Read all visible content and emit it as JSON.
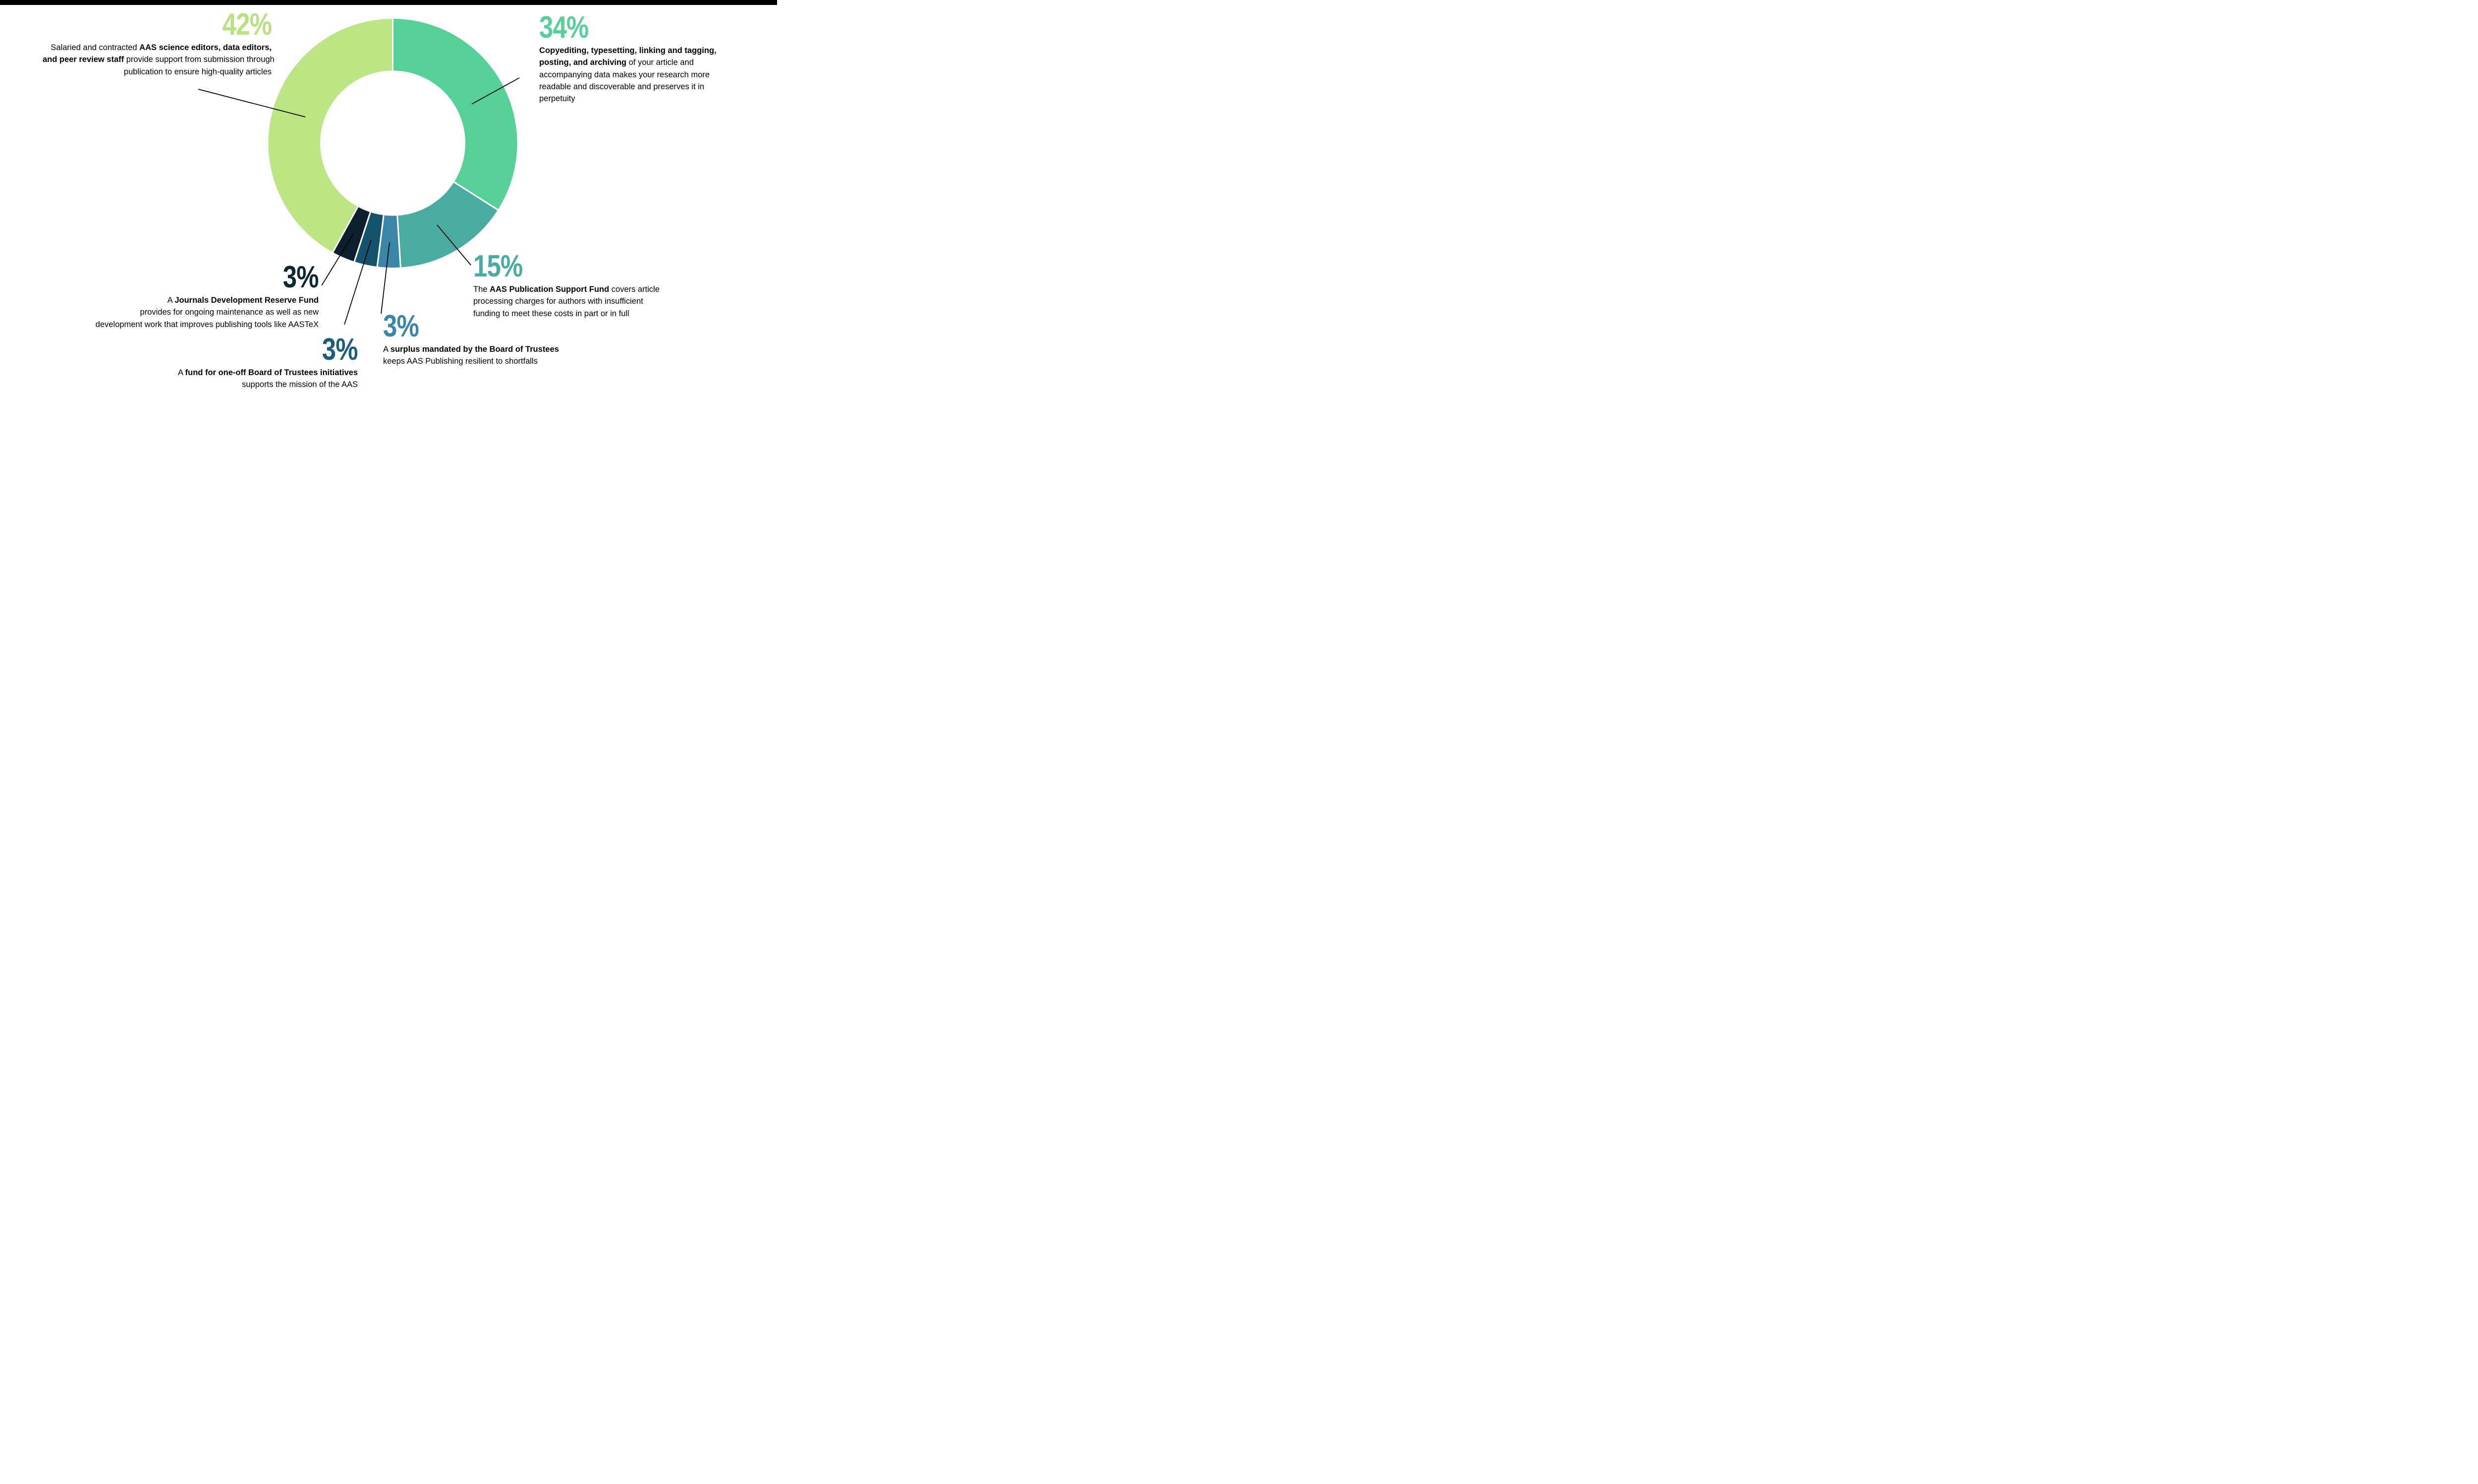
{
  "page": {
    "background": "#ffffff",
    "top_bar_color": "#000000",
    "text_color": "#000000"
  },
  "chart_data": {
    "type": "pie",
    "subtype": "donut",
    "title": "",
    "start_angle_deg": 0,
    "direction": "clockwise",
    "inner_radius_ratio": 0.574,
    "gap_color": "#ffffff",
    "categories": [
      "Copyediting, typesetting, linking and tagging, posting, and archiving",
      "AAS Publication Support Fund",
      "Surplus mandated by the Board of Trustees",
      "Fund for one-off Board of Trustees initiatives",
      "Journals Development Reserve Fund",
      "AAS science editors, data editors, and peer review staff"
    ],
    "values": [
      34,
      15,
      3,
      3,
      3,
      42
    ],
    "slices": [
      {
        "callout": "copyediting",
        "label": "34%",
        "value": 34,
        "color": "#55d096"
      },
      {
        "callout": "psf",
        "label": "15%",
        "value": 15,
        "color": "#4aaca1"
      },
      {
        "callout": "surplus",
        "label": "3%",
        "value": 3,
        "color": "#3a86a8"
      },
      {
        "callout": "oneoff",
        "label": "3%",
        "value": 3,
        "color": "#14536e"
      },
      {
        "callout": "jdrf",
        "label": "3%",
        "value": 3,
        "color": "#0d1f2c"
      },
      {
        "callout": "editors",
        "label": "42%",
        "value": 42,
        "color": "#bce584"
      }
    ]
  },
  "callouts": {
    "editors": {
      "pct": "42%",
      "pct_color": "#b9e182",
      "lines": [
        [
          {
            "t": "Salaried and contracted ",
            "b": false
          },
          {
            "t": "AAS science editors, data editors,",
            "b": true
          }
        ],
        [
          {
            "t": "and peer review staff",
            "b": true
          },
          {
            "t": " provide support from submission through",
            "b": false
          }
        ],
        [
          {
            "t": "publication to ensure high-quality articles",
            "b": false
          }
        ]
      ]
    },
    "copyediting": {
      "pct": "34%",
      "pct_color": "#55d096",
      "lines": [
        [
          {
            "t": "Copyediting, typesetting, linking and tagging,",
            "b": true
          }
        ],
        [
          {
            "t": "posting, and archiving",
            "b": true
          },
          {
            "t": " of your article and",
            "b": false
          }
        ],
        [
          {
            "t": "accompanying data makes your research more",
            "b": false
          }
        ],
        [
          {
            "t": "readable and discoverable and preserves it in",
            "b": false
          }
        ],
        [
          {
            "t": "perpetuity",
            "b": false
          }
        ]
      ]
    },
    "psf": {
      "pct": "15%",
      "pct_color": "#4aaca1",
      "lines": [
        [
          {
            "t": "The ",
            "b": false
          },
          {
            "t": "AAS Publication Support Fund",
            "b": true
          },
          {
            "t": " covers article",
            "b": false
          }
        ],
        [
          {
            "t": "processing charges for authors with insufficient",
            "b": false
          }
        ],
        [
          {
            "t": "funding to meet these costs in part or in full",
            "b": false
          }
        ]
      ]
    },
    "surplus": {
      "pct": "3%",
      "pct_color": "#3a86a8",
      "lines": [
        [
          {
            "t": "A ",
            "b": false
          },
          {
            "t": "surplus mandated by the Board of Trustees",
            "b": true
          }
        ],
        [
          {
            "t": "keeps AAS Publishing resilient to shortfalls",
            "b": false
          }
        ]
      ]
    },
    "oneoff": {
      "pct": "3%",
      "pct_color": "#1a5d7c",
      "lines": [
        [
          {
            "t": "A ",
            "b": false
          },
          {
            "t": "fund for one-off Board of Trustees initiatives",
            "b": true
          }
        ],
        [
          {
            "t": "supports the mission of the AAS",
            "b": false
          }
        ]
      ]
    },
    "jdrf": {
      "pct": "3%",
      "pct_color": "#0e2737",
      "lines": [
        [
          {
            "t": "A ",
            "b": false
          },
          {
            "t": "Journals Development Reserve Fund",
            "b": true
          }
        ],
        [
          {
            "t": "provides for ongoing maintenance as well as new",
            "b": false
          }
        ],
        [
          {
            "t": "development work that improves publishing tools like AASTeX",
            "b": false
          }
        ]
      ]
    }
  }
}
